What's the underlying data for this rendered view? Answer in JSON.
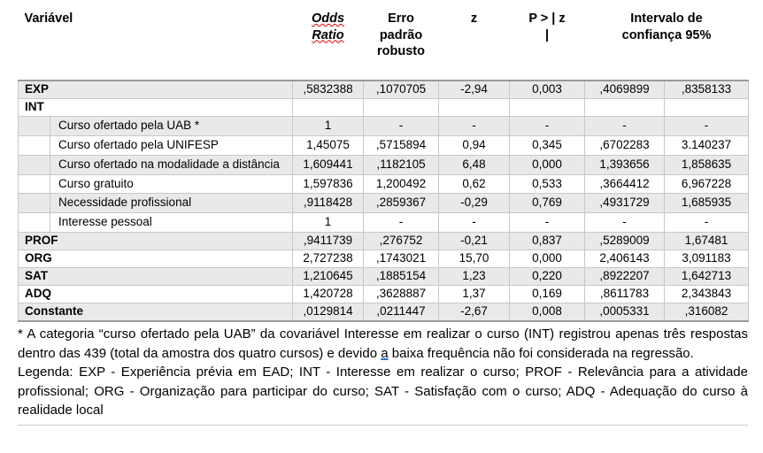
{
  "table": {
    "header": {
      "variable": "Variável",
      "odds_line1": "Odds",
      "odds_line2": "Ratio",
      "std_error": "Erro padrão robusto",
      "z": "z",
      "p_line1": "P > | z",
      "p_line2": "|",
      "ci": "Intervalo de confiança 95%"
    },
    "rows": [
      {
        "label": "EXP",
        "bold": true,
        "indent": false,
        "shade": true,
        "values": [
          ",5832388",
          ",1070705",
          "-2,94",
          "0,003",
          ",4069899",
          ",8358133"
        ]
      },
      {
        "label": "INT",
        "bold": true,
        "indent": false,
        "shade": false,
        "values": [
          "",
          "",
          "",
          "",
          "",
          ""
        ]
      },
      {
        "label": "Curso ofertado pela UAB *",
        "bold": false,
        "indent": true,
        "shade": true,
        "values": [
          "1",
          "-",
          "-",
          "-",
          "-",
          "-"
        ]
      },
      {
        "label": "Curso ofertado pela UNIFESP",
        "bold": false,
        "indent": true,
        "shade": false,
        "values": [
          "1,45075",
          ",5715894",
          "0,94",
          "0,345",
          ",6702283",
          "3.140237"
        ]
      },
      {
        "label": "Curso ofertado na modalidade a distância",
        "bold": false,
        "indent": true,
        "shade": true,
        "values": [
          "1,609441",
          ",1182105",
          "6,48",
          "0,000",
          "1,393656",
          "1,858635"
        ]
      },
      {
        "label": "Curso gratuito",
        "bold": false,
        "indent": true,
        "shade": false,
        "values": [
          "1,597836",
          "1,200492",
          "0,62",
          "0,533",
          ",3664412",
          "6,967228"
        ]
      },
      {
        "label": "Necessidade profissional",
        "bold": false,
        "indent": true,
        "shade": true,
        "values": [
          ",9118428",
          ",2859367",
          "-0,29",
          "0,769",
          ",4931729",
          "1,685935"
        ]
      },
      {
        "label": "Interesse pessoal",
        "bold": false,
        "indent": true,
        "shade": false,
        "values": [
          "1",
          "-",
          "-",
          "-",
          "-",
          "-"
        ]
      },
      {
        "label": "PROF",
        "bold": true,
        "indent": false,
        "shade": true,
        "values": [
          ",9411739",
          ",276752",
          "-0,21",
          "0,837",
          ",5289009",
          "1,67481"
        ]
      },
      {
        "label": "ORG",
        "bold": true,
        "indent": false,
        "shade": false,
        "values": [
          "2,727238",
          ",1743021",
          "15,70",
          "0,000",
          "2,406143",
          "3,091183"
        ]
      },
      {
        "label": "SAT",
        "bold": true,
        "indent": false,
        "shade": true,
        "values": [
          "1,210645",
          ",1885154",
          "1,23",
          "0,220",
          ",8922207",
          "1,642713"
        ]
      },
      {
        "label": "ADQ",
        "bold": true,
        "indent": false,
        "shade": false,
        "values": [
          "1,420728",
          ",3628887",
          "1,37",
          "0,169",
          ",8611783",
          "2,343843"
        ]
      },
      {
        "label": "Constante",
        "bold": true,
        "indent": false,
        "shade": true,
        "values": [
          ",0129814",
          ",0211447",
          "-2,67",
          "0,008",
          ",0005331",
          ",316082"
        ]
      }
    ]
  },
  "footnote": {
    "part1": "* A categoria “curso ofertado pela UAB” da covariável Interesse em realizar o curso (INT) registrou apenas três respostas dentro das 439 (total da amostra dos quatro cursos) e devido ",
    "marked": "a",
    "part2": " baixa frequência não foi considerada na regressão."
  },
  "legend": {
    "text": "Legenda: EXP - Experiência prévia em EAD; INT - Interesse em realizar o curso; PROF - Relevância para a atividade profissional; ORG - Organização para participar do curso; SAT - Satisfação com o curso; ADQ - Adequação do curso à realidade local"
  },
  "colors": {
    "stripe": "#e9e9e9",
    "gridline": "#c8c8c8",
    "strong_line": "#9a9a9a",
    "spellcheck_red": "#e00000",
    "grammar_blue": "#2f6fd6"
  }
}
